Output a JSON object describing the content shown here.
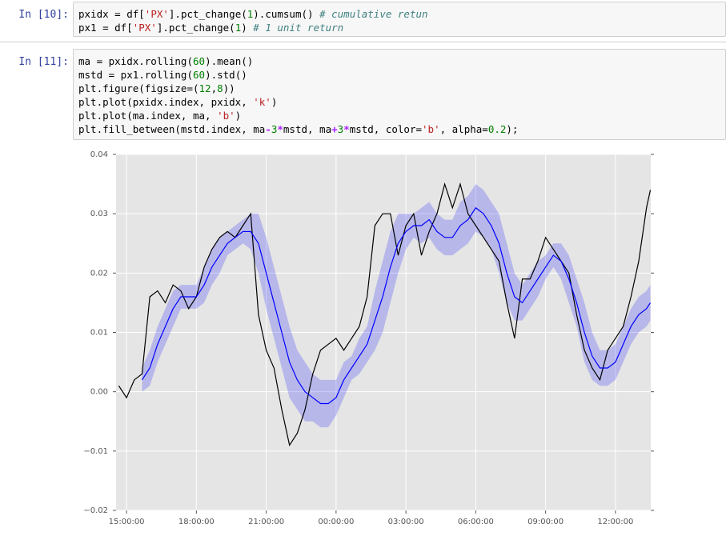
{
  "cells": [
    {
      "prompt": "In [10]:",
      "code": [
        "pxidx = df['PX'].pct_change(1).cumsum() # cumulative retun",
        "px1 = df['PX'].pct_change(1) # 1 unit return"
      ]
    },
    {
      "prompt": "In [11]:",
      "code": [
        "ma = pxidx.rolling(60).mean()",
        "mstd = px1.rolling(60).std()",
        "plt.figure(figsize=(12,8))",
        "plt.plot(pxidx.index, pxidx, 'k')",
        "plt.plot(ma.index, ma, 'b')",
        "plt.fill_between(mstd.index, ma-3*mstd, ma+3*mstd, color='b', alpha=0.2);"
      ]
    }
  ],
  "chart_data": {
    "type": "line",
    "x": [
      "14:40:00",
      "15:00:00",
      "15:20:00",
      "15:40:00",
      "16:00:00",
      "16:20:00",
      "16:40:00",
      "17:00:00",
      "17:20:00",
      "17:40:00",
      "18:00:00",
      "18:20:00",
      "18:40:00",
      "19:00:00",
      "19:20:00",
      "19:40:00",
      "20:00:00",
      "20:20:00",
      "20:40:00",
      "21:00:00",
      "21:20:00",
      "21:40:00",
      "22:00:00",
      "22:20:00",
      "22:40:00",
      "23:00:00",
      "23:20:00",
      "23:40:00",
      "00:00:00",
      "00:20:00",
      "00:40:00",
      "01:00:00",
      "01:20:00",
      "01:40:00",
      "02:00:00",
      "02:20:00",
      "02:40:00",
      "03:00:00",
      "03:20:00",
      "03:40:00",
      "04:00:00",
      "04:20:00",
      "04:40:00",
      "05:00:00",
      "05:20:00",
      "05:40:00",
      "06:00:00",
      "06:20:00",
      "06:40:00",
      "07:00:00",
      "07:20:00",
      "07:40:00",
      "08:00:00",
      "08:20:00",
      "08:40:00",
      "09:00:00",
      "09:20:00",
      "09:40:00",
      "10:00:00",
      "10:20:00",
      "10:40:00",
      "11:00:00",
      "11:20:00",
      "11:40:00",
      "12:00:00",
      "12:20:00",
      "12:40:00",
      "13:00:00",
      "13:20:00",
      "13:30:00"
    ],
    "xlim": [
      "14:33:00",
      "13:31:00"
    ],
    "xticks": [
      "15:00:00",
      "18:00:00",
      "21:00:00",
      "00:00:00",
      "03:00:00",
      "06:00:00",
      "09:00:00",
      "12:00:00"
    ],
    "ylim": [
      -0.02,
      0.04
    ],
    "yticks": [
      {
        "value": -0.02,
        "label": "−0.02"
      },
      {
        "value": -0.01,
        "label": "−0.01"
      },
      {
        "value": 0,
        "label": "0.00"
      },
      0.01,
      0.02,
      0.03,
      0.04
    ],
    "grid": true,
    "series": [
      {
        "color": "#000000",
        "values": [
          0.001,
          -0.001,
          0.002,
          0.003,
          0.016,
          0.017,
          0.015,
          0.018,
          0.017,
          0.014,
          0.016,
          0.021,
          0.024,
          0.026,
          0.027,
          0.026,
          0.028,
          0.03,
          0.013,
          0.007,
          0.004,
          -0.003,
          -0.009,
          -0.007,
          -0.003,
          0.003,
          0.007,
          0.008,
          0.009,
          0.007,
          0.009,
          0.011,
          0.016,
          0.028,
          0.03,
          0.03,
          0.023,
          0.028,
          0.03,
          0.023,
          0.027,
          0.03,
          0.035,
          0.031,
          0.035,
          0.03,
          0.028,
          0.026,
          0.024,
          0.022,
          0.015,
          0.009,
          0.019,
          0.019,
          0.022,
          0.026,
          0.024,
          0.022,
          0.02,
          0.013,
          0.007,
          0.004,
          0.002,
          0.007,
          0.009,
          0.011,
          0.016,
          0.022,
          0.031,
          0.034
        ]
      },
      {
        "color": "#0000ff",
        "values": [
          null,
          null,
          null,
          0.002,
          0.004,
          0.008,
          0.011,
          0.014,
          0.016,
          0.016,
          0.016,
          0.018,
          0.021,
          0.023,
          0.025,
          0.026,
          0.027,
          0.027,
          0.025,
          0.02,
          0.015,
          0.01,
          0.005,
          0.002,
          0.0,
          -0.001,
          -0.002,
          -0.002,
          -0.001,
          0.002,
          0.004,
          0.006,
          0.008,
          0.012,
          0.016,
          0.021,
          0.025,
          0.027,
          0.028,
          0.028,
          0.029,
          0.027,
          0.026,
          0.026,
          0.028,
          0.029,
          0.031,
          0.03,
          0.028,
          0.025,
          0.02,
          0.016,
          0.015,
          0.017,
          0.019,
          0.021,
          0.023,
          0.022,
          0.019,
          0.015,
          0.01,
          0.006,
          0.004,
          0.004,
          0.005,
          0.008,
          0.011,
          0.013,
          0.014,
          0.015
        ]
      }
    ],
    "band": {
      "color": "#0000ff",
      "opacity": 0.2,
      "lower": [
        null,
        null,
        null,
        0.0,
        0.001,
        0.005,
        0.008,
        0.011,
        0.014,
        0.014,
        0.014,
        0.015,
        0.018,
        0.02,
        0.023,
        0.024,
        0.025,
        0.024,
        0.02,
        0.014,
        0.009,
        0.004,
        -0.001,
        -0.003,
        -0.005,
        -0.005,
        -0.006,
        -0.006,
        -0.004,
        -0.001,
        0.002,
        0.003,
        0.005,
        0.007,
        0.01,
        0.015,
        0.02,
        0.024,
        0.026,
        0.025,
        0.026,
        0.024,
        0.023,
        0.023,
        0.024,
        0.025,
        0.027,
        0.026,
        0.024,
        0.02,
        0.015,
        0.012,
        0.012,
        0.014,
        0.016,
        0.019,
        0.021,
        0.019,
        0.015,
        0.011,
        0.005,
        0.002,
        0.001,
        0.001,
        0.002,
        0.005,
        0.008,
        0.01,
        0.011,
        0.012
      ],
      "upper": [
        null,
        null,
        null,
        0.004,
        0.007,
        0.011,
        0.014,
        0.017,
        0.018,
        0.018,
        0.018,
        0.021,
        0.024,
        0.026,
        0.027,
        0.028,
        0.029,
        0.03,
        0.03,
        0.026,
        0.021,
        0.016,
        0.011,
        0.007,
        0.005,
        0.003,
        0.002,
        0.002,
        0.002,
        0.005,
        0.006,
        0.009,
        0.011,
        0.017,
        0.022,
        0.027,
        0.03,
        0.03,
        0.03,
        0.031,
        0.032,
        0.03,
        0.029,
        0.029,
        0.032,
        0.033,
        0.035,
        0.034,
        0.032,
        0.03,
        0.025,
        0.02,
        0.018,
        0.02,
        0.022,
        0.023,
        0.025,
        0.025,
        0.023,
        0.019,
        0.015,
        0.01,
        0.007,
        0.007,
        0.008,
        0.011,
        0.014,
        0.016,
        0.017,
        0.018
      ]
    }
  }
}
